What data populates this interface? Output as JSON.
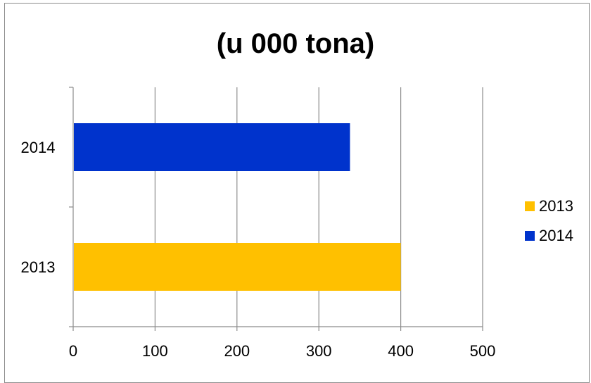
{
  "chart_data": {
    "type": "bar",
    "orientation": "horizontal",
    "title": "(u 000 tona)",
    "categories": [
      "2013",
      "2014"
    ],
    "series": [
      {
        "name": "2013",
        "category": "2013",
        "value": 400,
        "color": "#FFC000"
      },
      {
        "name": "2014",
        "category": "2014",
        "value": 338,
        "color": "#0033CC"
      }
    ],
    "xlim": [
      0,
      500
    ],
    "x_ticks": [
      "0",
      "100",
      "200",
      "300",
      "400",
      "500"
    ],
    "grid": true,
    "legend_position": "right"
  }
}
